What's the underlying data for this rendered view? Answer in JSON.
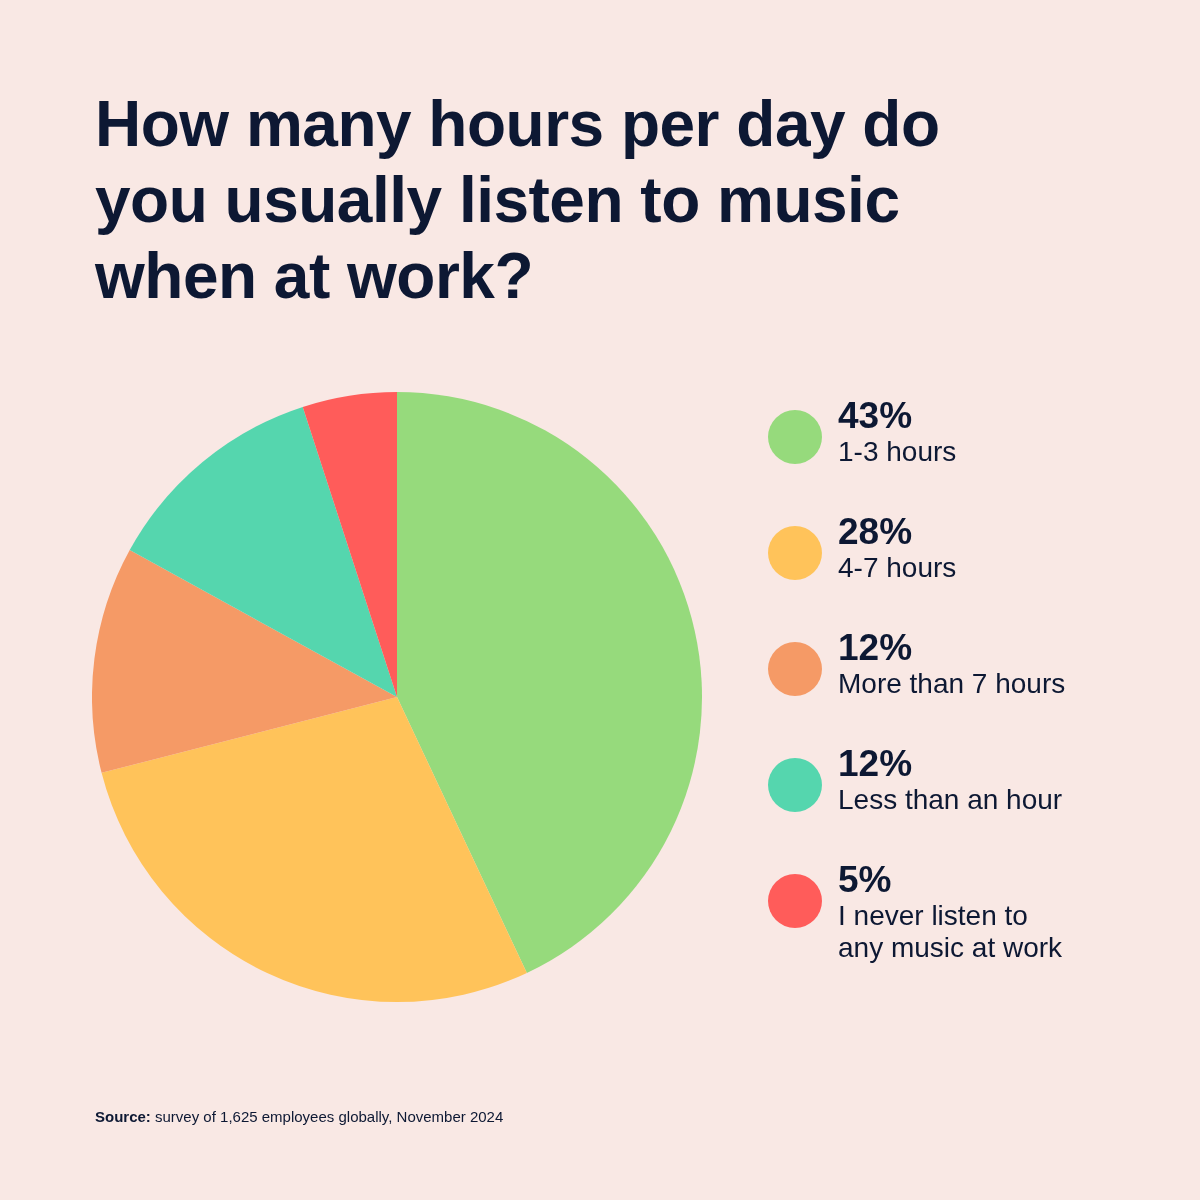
{
  "chart_data": {
    "type": "pie",
    "title": "How many hours per day do you usually listen to music when at work?",
    "categories": [
      "1-3 hours",
      "4-7 hours",
      "More than 7 hours",
      "Less than an hour",
      "I never listen to any music at work"
    ],
    "values": [
      43,
      28,
      12,
      12,
      5
    ],
    "value_labels": [
      "43%",
      "28%",
      "12%",
      "12%",
      "5%"
    ],
    "colors": [
      "#96da7c",
      "#ffc35a",
      "#f59a66",
      "#55d6ae",
      "#ff5c5a"
    ],
    "legend": "right",
    "annotations": [
      "Source: survey of 1,625 employees globally, November 2024"
    ]
  }
}
